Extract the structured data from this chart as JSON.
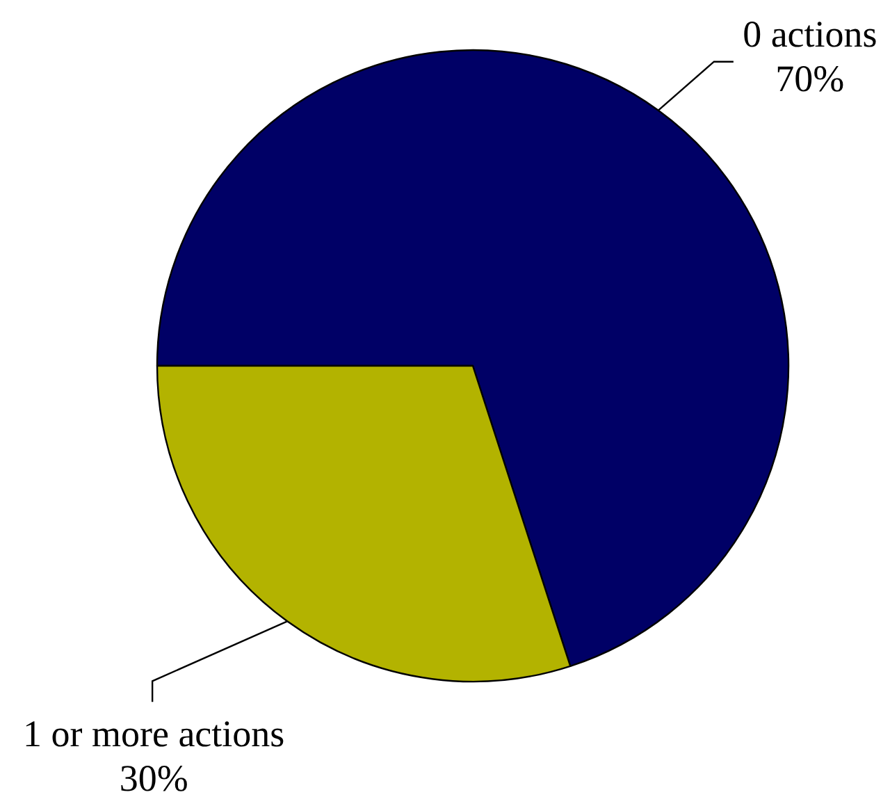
{
  "chart_data": {
    "type": "pie",
    "categories": [
      "0 actions",
      "1 or more actions"
    ],
    "values": [
      70,
      30
    ],
    "colors": [
      "#000066",
      "#b3b300"
    ],
    "value_labels": [
      "70%",
      "30%"
    ],
    "legend": false
  }
}
